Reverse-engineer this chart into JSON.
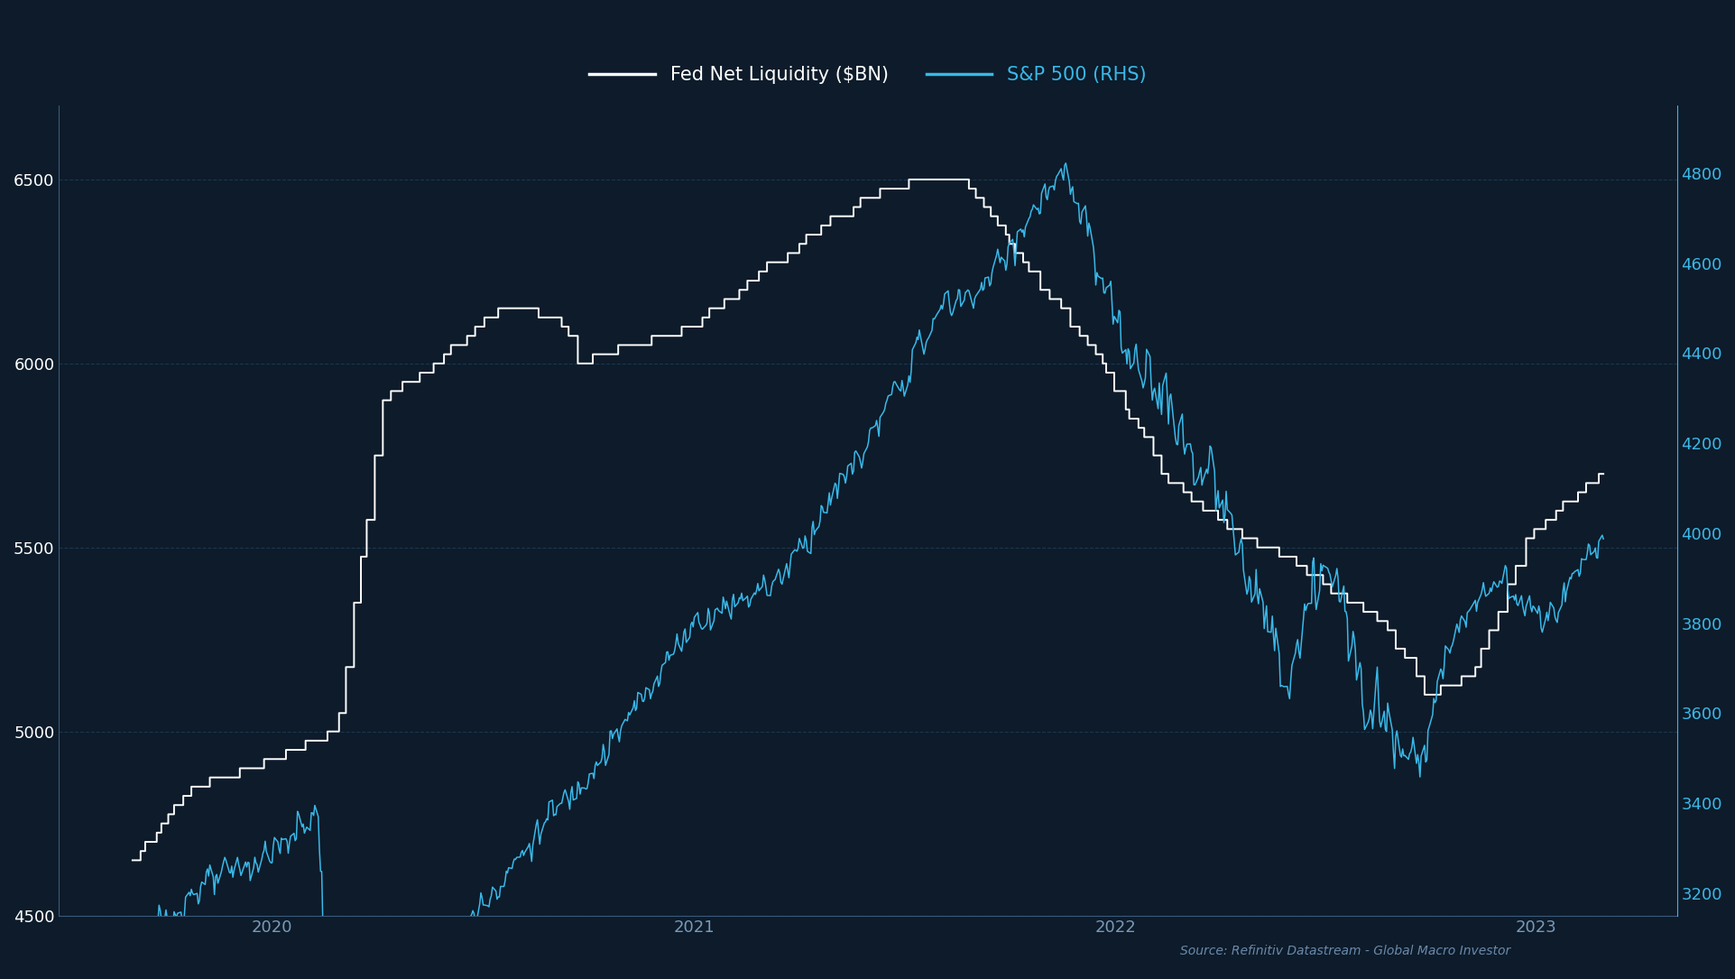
{
  "bg_color": "#0d1b2a",
  "plot_bg_color": "#0d1b2a",
  "grid_color": "#1e3a52",
  "left_label_color": "#ffffff",
  "right_label_color": "#3ab8e8",
  "tick_color": "#7a9ab8",
  "source_text": "Source: Refinitiv Datastream - Global Macro Investor",
  "legend_items": [
    {
      "label": "Fed Net Liquidity ($BN)",
      "color": "#ffffff"
    },
    {
      "label": "S&P 500 (RHS)",
      "color": "#3ab8e8"
    }
  ],
  "left_ylim": [
    4500,
    6700
  ],
  "right_ylim": [
    3150,
    4950
  ],
  "left_yticks": [
    4500,
    5000,
    5500,
    6000,
    6500
  ],
  "right_yticks": [
    3200,
    3400,
    3600,
    3800,
    4000,
    4200,
    4400,
    4600,
    4800
  ],
  "liq_line_color": "#ffffff",
  "sp500_line_color": "#3ab8e8",
  "liq_linewidth": 1.4,
  "sp500_linewidth": 1.1
}
